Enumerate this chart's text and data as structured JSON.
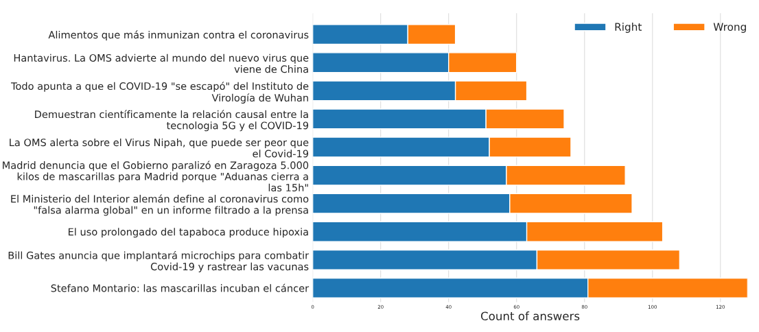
{
  "chart_data": {
    "type": "bar",
    "orientation": "horizontal",
    "stacked": true,
    "categories": [
      "Alimentos que más inmunizan contra el coronavirus",
      "Hantavirus. La OMS advierte al mundo del nuevo virus que\nviene de China",
      "Todo apunta a que el COVID-19 \"se escapó\" del Instituto de\nVirología de Wuhan",
      "Demuestran científicamente la relación causal entre la\ntecnologia 5G y el COVID-19",
      "La OMS alerta sobre el Virus Nipah, que puede ser peor que\nel Covid-19",
      "Madrid denuncia que el Gobierno paralizó en Zaragoza 5.000\nkilos de mascarillas para Madrid porque \"Aduanas cierra a\nlas 15h\"",
      "El Ministerio del Interior alemán define al coronavirus como\n\"falsa alarma global\" en un informe filtrado a la prensa",
      "El uso prolongado del tapaboca produce hipoxia",
      "Bill Gates anuncia que implantará microchips para combatir\nCovid-19 y rastrear las vacunas",
      "Stefano Montario: las mascarillas incuban el cáncer"
    ],
    "series": [
      {
        "name": "Right",
        "color": "#1f77b4",
        "values": [
          28,
          40,
          42,
          51,
          52,
          57,
          58,
          63,
          66,
          81
        ]
      },
      {
        "name": "Wrong",
        "color": "#ff7f0e",
        "values": [
          14,
          20,
          21,
          23,
          24,
          35,
          36,
          40,
          42,
          47
        ]
      }
    ],
    "xlabel": "Count of answers",
    "xlim": [
      0,
      128
    ],
    "xticks": [
      0,
      20,
      40,
      60,
      80,
      100,
      120
    ],
    "grid": "x",
    "legend": "top right"
  }
}
